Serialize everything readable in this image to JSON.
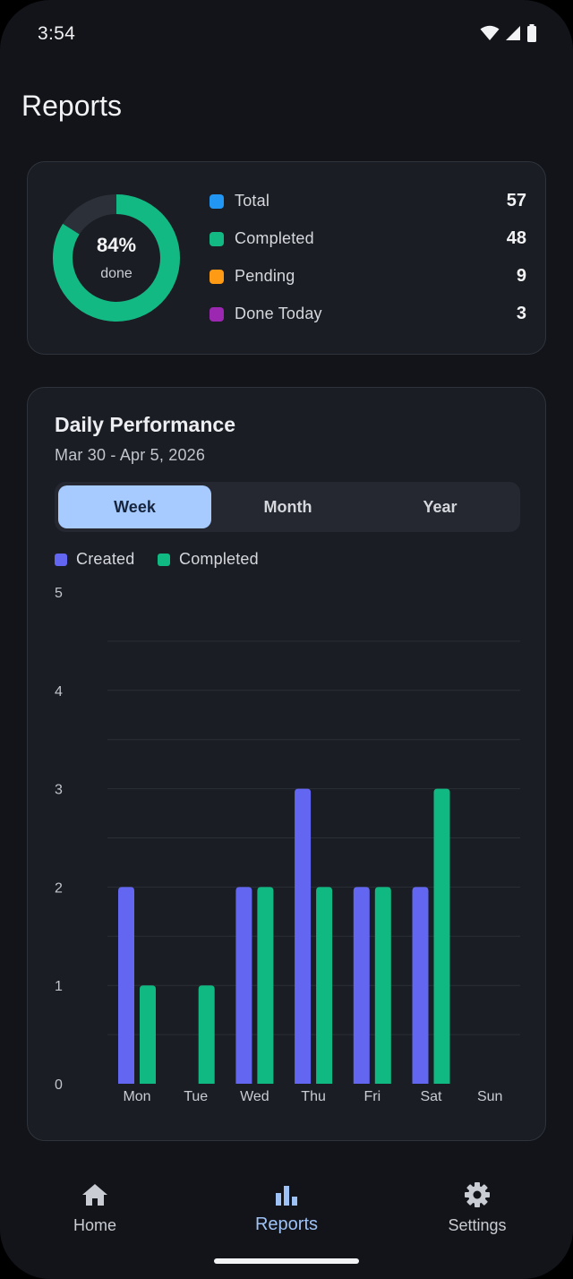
{
  "status_bar": {
    "time": "3:54"
  },
  "page": {
    "title": "Reports"
  },
  "summary": {
    "percent": "84%",
    "percent_value": 0.84,
    "percent_caption": "done",
    "items": [
      {
        "label": "Total",
        "value": "57",
        "color": "#2196f3"
      },
      {
        "label": "Completed",
        "value": "48",
        "color": "#13b983"
      },
      {
        "label": "Pending",
        "value": "9",
        "color": "#ff9a14"
      },
      {
        "label": "Done Today",
        "value": "3",
        "color": "#9c27b0"
      }
    ]
  },
  "performance": {
    "title": "Daily Performance",
    "range": "Mar 30 - Apr 5, 2026",
    "tabs": [
      {
        "label": "Week",
        "active": true
      },
      {
        "label": "Month",
        "active": false
      },
      {
        "label": "Year",
        "active": false
      }
    ]
  },
  "chart_data": {
    "type": "bar",
    "categories": [
      "Mon",
      "Tue",
      "Wed",
      "Thu",
      "Fri",
      "Sat",
      "Sun"
    ],
    "series": [
      {
        "name": "Created",
        "color": "#6366f1",
        "values": [
          2,
          0,
          2,
          3,
          2,
          2,
          0
        ]
      },
      {
        "name": "Completed",
        "color": "#10b981",
        "values": [
          1,
          1,
          2,
          2,
          2,
          3,
          0
        ]
      }
    ],
    "ylim": [
      0,
      5
    ],
    "yticks": [
      "0",
      "1",
      "2",
      "3",
      "4",
      "5"
    ],
    "grid": true,
    "legend": "top-left"
  },
  "bottom_nav": [
    {
      "label": "Home",
      "icon": "home-icon",
      "active": false
    },
    {
      "label": "Reports",
      "icon": "bar-chart-icon",
      "active": true
    },
    {
      "label": "Settings",
      "icon": "gear-icon",
      "active": false
    }
  ]
}
